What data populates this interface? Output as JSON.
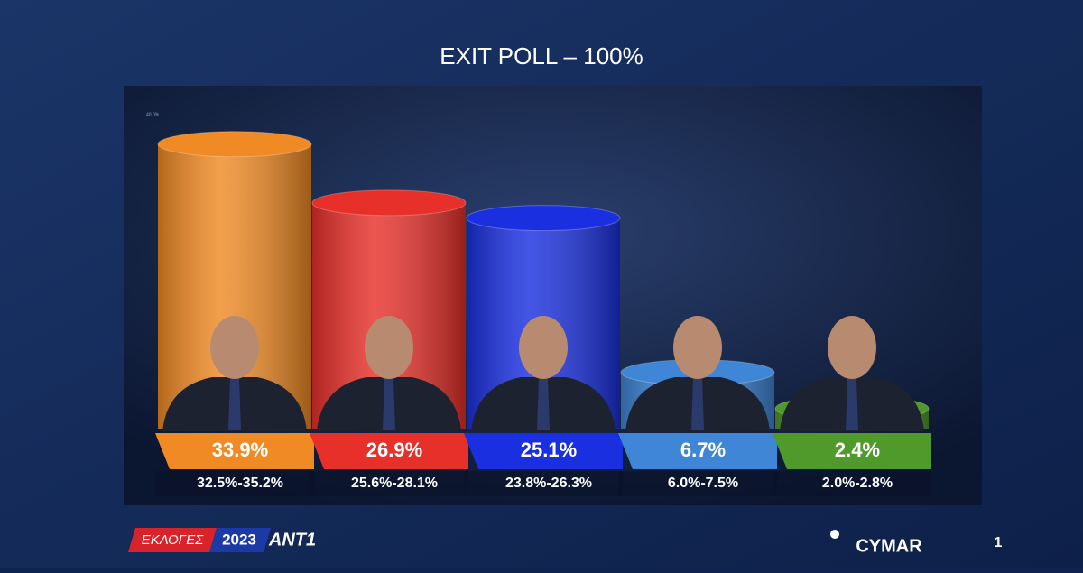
{
  "chart_data": {
    "type": "bar",
    "title": "EXIT POLL – 100%",
    "categories": [
      null,
      null,
      null,
      null,
      null
    ],
    "values": [
      33.9,
      26.9,
      25.1,
      6.7,
      2.4
    ],
    "value_labels": [
      "33.9%",
      "26.9%",
      "25.1%",
      "6.7%",
      "2.4%"
    ],
    "interval_labels": [
      "32.5%-35.2%",
      "25.6%-28.1%",
      "23.8%-26.3%",
      "6.0%-7.5%",
      "2.0%-2.8%"
    ],
    "colors": [
      "#f08a24",
      "#e8302a",
      "#1a30e0",
      "#3f86d6",
      "#4f9a2a"
    ],
    "ylim": [
      0,
      40
    ],
    "yticks": [
      {
        "value": 40,
        "label": "40.0%"
      }
    ]
  },
  "footer": {
    "election": "ΕΚΛΟΓΕΣ",
    "year": "2023",
    "channel": "ANT1",
    "pollster": "CYMAR",
    "page": "1"
  }
}
